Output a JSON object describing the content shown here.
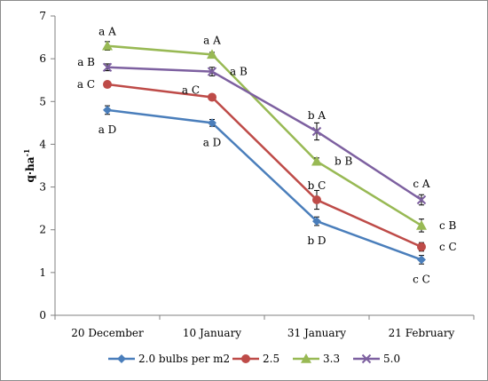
{
  "chart_data": {
    "type": "line",
    "title": "",
    "xlabel": "",
    "ylabel": "q·ha",
    "ylabel_superscript": "-1",
    "ylim": [
      0,
      7
    ],
    "yticks": [
      "0",
      "1",
      "2",
      "3",
      "4",
      "5",
      "6",
      "7"
    ],
    "categories": [
      "20 December",
      "10 January",
      "31 January",
      "21 February"
    ],
    "grid": false,
    "legend_position": "bottom",
    "series": [
      {
        "name": "2.0 bulbs per m2",
        "color": "#4a7ebb",
        "marker": "diamond",
        "values": [
          4.8,
          4.5,
          2.2,
          1.3
        ],
        "errors": [
          0.1,
          0.08,
          0.1,
          0.1
        ],
        "labels": [
          "a D",
          "a D",
          "b D",
          "c C"
        ]
      },
      {
        "name": "2.5",
        "color": "#be4b48",
        "marker": "circle",
        "values": [
          5.4,
          5.1,
          2.7,
          1.6
        ],
        "errors": [
          0.05,
          0.05,
          0.22,
          0.1
        ],
        "labels": [
          "a C",
          "a C",
          "b C",
          "c C"
        ]
      },
      {
        "name": "3.3",
        "color": "#98b954",
        "marker": "triangle",
        "values": [
          6.3,
          6.1,
          3.6,
          2.1
        ],
        "errors": [
          0.1,
          0.05,
          0.08,
          0.15
        ],
        "labels": [
          "a A",
          "a A",
          "b B",
          "c B"
        ]
      },
      {
        "name": "5.0",
        "color": "#7d60a0",
        "marker": "x",
        "values": [
          5.8,
          5.7,
          4.3,
          2.7
        ],
        "errors": [
          0.08,
          0.1,
          0.2,
          0.12
        ],
        "labels": [
          "a B",
          "a B",
          "b A",
          "c A"
        ]
      }
    ]
  }
}
